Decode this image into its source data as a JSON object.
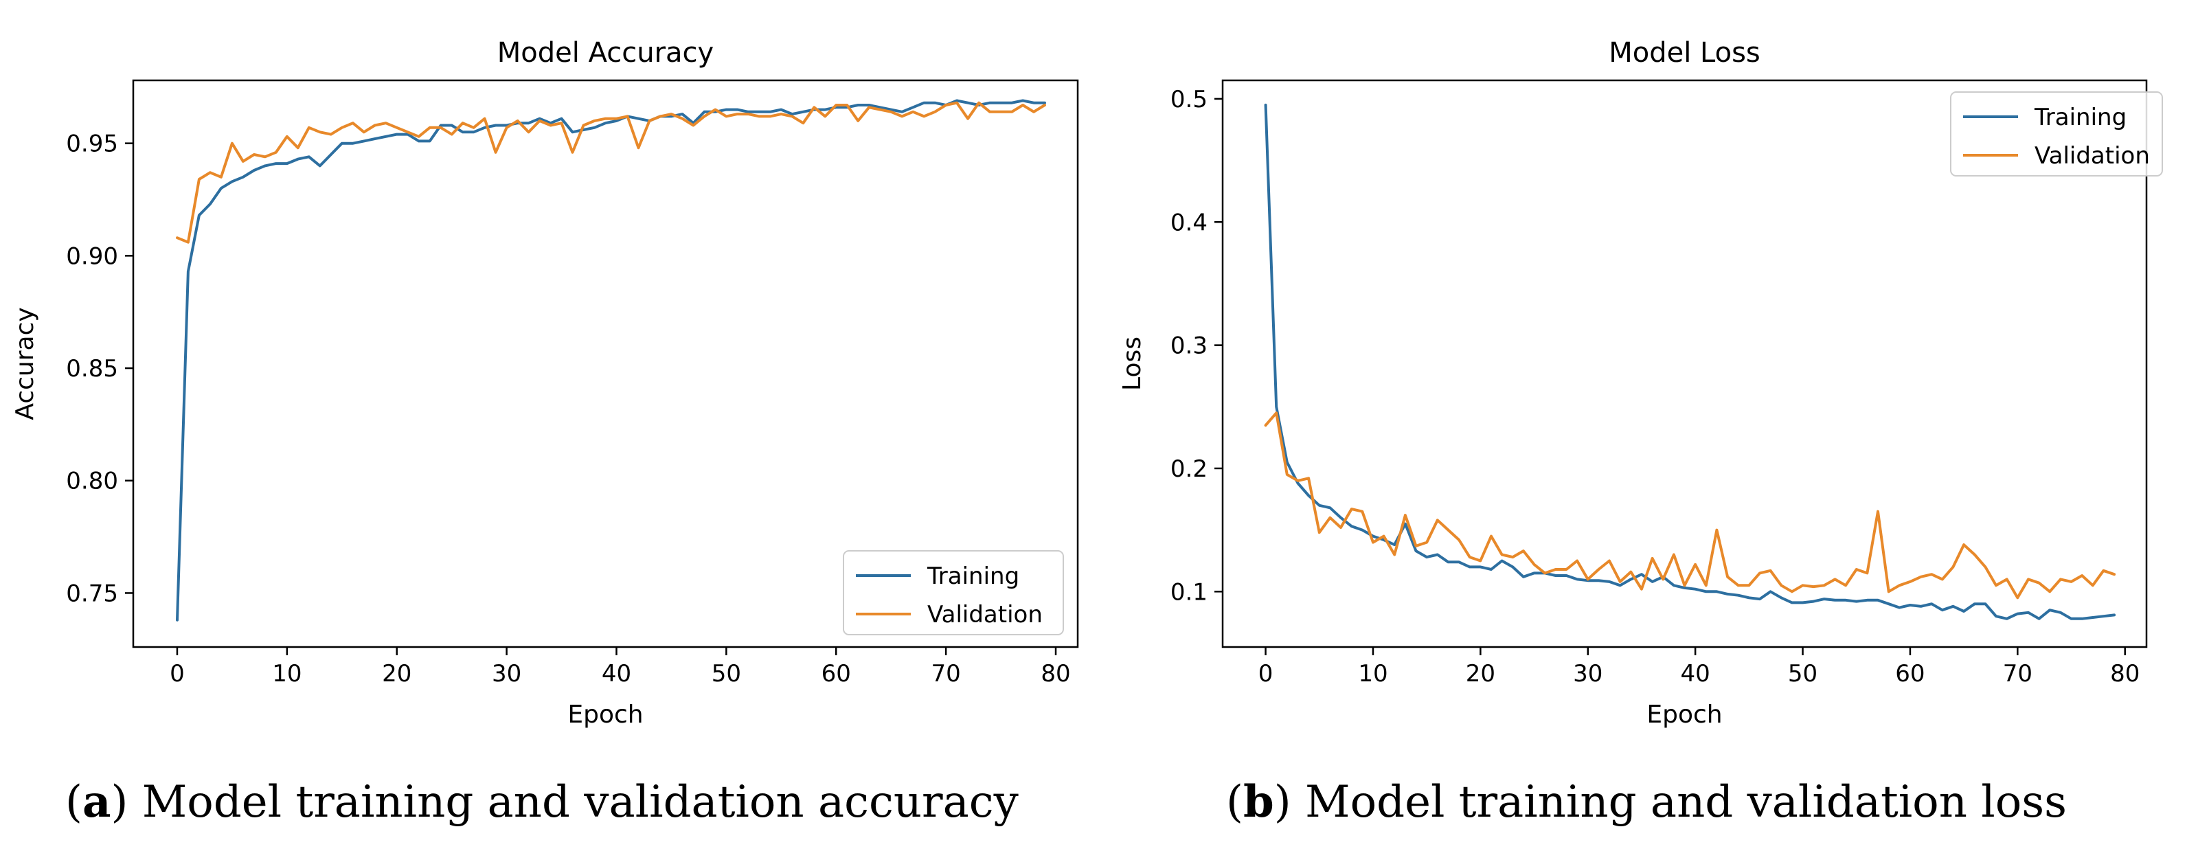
{
  "colors": {
    "training": "#2d6fa0",
    "validation": "#e8892a",
    "axis": "#000000"
  },
  "captions": [
    {
      "letter": "a",
      "text": "Model training and validation accuracy"
    },
    {
      "letter": "b",
      "text": "Model training and validation loss"
    }
  ],
  "chart_data": [
    {
      "type": "line",
      "title": "Model Accuracy",
      "xlabel": "Epoch",
      "ylabel": "Accuracy",
      "xlim": [
        -4,
        82
      ],
      "ylim": [
        0.726,
        0.978
      ],
      "xticks": [
        0,
        10,
        20,
        30,
        40,
        50,
        60,
        70,
        80
      ],
      "xtick_labels": [
        "0",
        "10",
        "20",
        "30",
        "40",
        "50",
        "60",
        "70",
        "80"
      ],
      "yticks": [
        0.75,
        0.8,
        0.85,
        0.9,
        0.95
      ],
      "ytick_labels": [
        "0.75",
        "0.80",
        "0.85",
        "0.90",
        "0.95"
      ],
      "grid": false,
      "legend_position": "lower-right",
      "series": [
        {
          "name": "Training",
          "x": [
            0,
            1,
            2,
            3,
            4,
            5,
            6,
            7,
            8,
            9,
            10,
            11,
            12,
            13,
            14,
            15,
            16,
            17,
            18,
            19,
            20,
            21,
            22,
            23,
            24,
            25,
            26,
            27,
            28,
            29,
            30,
            31,
            32,
            33,
            34,
            35,
            36,
            37,
            38,
            39,
            40,
            41,
            42,
            43,
            44,
            45,
            46,
            47,
            48,
            49,
            50,
            51,
            52,
            53,
            54,
            55,
            56,
            57,
            58,
            59,
            60,
            61,
            62,
            63,
            64,
            65,
            66,
            67,
            68,
            69,
            70,
            71,
            72,
            73,
            74,
            75,
            76,
            77,
            78,
            79
          ],
          "values": [
            0.738,
            0.893,
            0.918,
            0.923,
            0.93,
            0.933,
            0.935,
            0.938,
            0.94,
            0.941,
            0.941,
            0.943,
            0.944,
            0.94,
            0.945,
            0.95,
            0.95,
            0.951,
            0.952,
            0.953,
            0.954,
            0.954,
            0.951,
            0.951,
            0.958,
            0.958,
            0.955,
            0.955,
            0.957,
            0.958,
            0.958,
            0.959,
            0.959,
            0.961,
            0.959,
            0.961,
            0.955,
            0.956,
            0.957,
            0.959,
            0.96,
            0.962,
            0.961,
            0.96,
            0.962,
            0.962,
            0.963,
            0.959,
            0.964,
            0.964,
            0.965,
            0.965,
            0.964,
            0.964,
            0.964,
            0.965,
            0.963,
            0.964,
            0.965,
            0.965,
            0.966,
            0.966,
            0.967,
            0.967,
            0.966,
            0.965,
            0.964,
            0.966,
            0.968,
            0.968,
            0.967,
            0.969,
            0.968,
            0.967,
            0.968,
            0.968,
            0.968,
            0.969,
            0.968,
            0.968
          ]
        },
        {
          "name": "Validation",
          "x": [
            0,
            1,
            2,
            3,
            4,
            5,
            6,
            7,
            8,
            9,
            10,
            11,
            12,
            13,
            14,
            15,
            16,
            17,
            18,
            19,
            20,
            21,
            22,
            23,
            24,
            25,
            26,
            27,
            28,
            29,
            30,
            31,
            32,
            33,
            34,
            35,
            36,
            37,
            38,
            39,
            40,
            41,
            42,
            43,
            44,
            45,
            46,
            47,
            48,
            49,
            50,
            51,
            52,
            53,
            54,
            55,
            56,
            57,
            58,
            59,
            60,
            61,
            62,
            63,
            64,
            65,
            66,
            67,
            68,
            69,
            70,
            71,
            72,
            73,
            74,
            75,
            76,
            77,
            78,
            79
          ],
          "values": [
            0.908,
            0.906,
            0.934,
            0.937,
            0.935,
            0.95,
            0.942,
            0.945,
            0.944,
            0.946,
            0.953,
            0.948,
            0.957,
            0.955,
            0.954,
            0.957,
            0.959,
            0.955,
            0.958,
            0.959,
            0.957,
            0.955,
            0.953,
            0.957,
            0.957,
            0.954,
            0.959,
            0.957,
            0.961,
            0.946,
            0.957,
            0.96,
            0.955,
            0.96,
            0.958,
            0.959,
            0.946,
            0.958,
            0.96,
            0.961,
            0.961,
            0.962,
            0.948,
            0.96,
            0.962,
            0.963,
            0.961,
            0.958,
            0.962,
            0.965,
            0.962,
            0.963,
            0.963,
            0.962,
            0.962,
            0.963,
            0.962,
            0.959,
            0.966,
            0.962,
            0.967,
            0.967,
            0.96,
            0.966,
            0.965,
            0.964,
            0.962,
            0.964,
            0.962,
            0.964,
            0.967,
            0.968,
            0.961,
            0.968,
            0.964,
            0.964,
            0.964,
            0.967,
            0.964,
            0.967
          ]
        }
      ]
    },
    {
      "type": "line",
      "title": "Model Loss",
      "xlabel": "Epoch",
      "ylabel": "Loss",
      "xlim": [
        -4,
        82
      ],
      "ylim": [
        0.055,
        0.515
      ],
      "xticks": [
        0,
        10,
        20,
        30,
        40,
        50,
        60,
        70,
        80
      ],
      "xtick_labels": [
        "0",
        "10",
        "20",
        "30",
        "40",
        "50",
        "60",
        "70",
        "80"
      ],
      "yticks": [
        0.1,
        0.2,
        0.3,
        0.4,
        0.5
      ],
      "ytick_labels": [
        "0.1",
        "0.2",
        "0.3",
        "0.4",
        "0.5"
      ],
      "grid": false,
      "legend_position": "upper-right",
      "series": [
        {
          "name": "Training",
          "x": [
            0,
            1,
            2,
            3,
            4,
            5,
            6,
            7,
            8,
            9,
            10,
            11,
            12,
            13,
            14,
            15,
            16,
            17,
            18,
            19,
            20,
            21,
            22,
            23,
            24,
            25,
            26,
            27,
            28,
            29,
            30,
            31,
            32,
            33,
            34,
            35,
            36,
            37,
            38,
            39,
            40,
            41,
            42,
            43,
            44,
            45,
            46,
            47,
            48,
            49,
            50,
            51,
            52,
            53,
            54,
            55,
            56,
            57,
            58,
            59,
            60,
            61,
            62,
            63,
            64,
            65,
            66,
            67,
            68,
            69,
            70,
            71,
            72,
            73,
            74,
            75,
            76,
            77,
            78,
            79
          ],
          "values": [
            0.495,
            0.25,
            0.205,
            0.188,
            0.178,
            0.17,
            0.168,
            0.16,
            0.153,
            0.15,
            0.145,
            0.142,
            0.138,
            0.155,
            0.133,
            0.128,
            0.13,
            0.124,
            0.124,
            0.12,
            0.12,
            0.118,
            0.125,
            0.12,
            0.112,
            0.115,
            0.115,
            0.113,
            0.113,
            0.11,
            0.109,
            0.109,
            0.108,
            0.105,
            0.11,
            0.114,
            0.108,
            0.112,
            0.105,
            0.103,
            0.102,
            0.1,
            0.1,
            0.098,
            0.097,
            0.095,
            0.094,
            0.1,
            0.095,
            0.091,
            0.091,
            0.092,
            0.094,
            0.093,
            0.093,
            0.092,
            0.093,
            0.093,
            0.09,
            0.087,
            0.089,
            0.088,
            0.09,
            0.085,
            0.088,
            0.084,
            0.09,
            0.09,
            0.08,
            0.078,
            0.082,
            0.083,
            0.078,
            0.085,
            0.083,
            0.078,
            0.078,
            0.079,
            0.08,
            0.081
          ]
        },
        {
          "name": "Validation",
          "x": [
            0,
            1,
            2,
            3,
            4,
            5,
            6,
            7,
            8,
            9,
            10,
            11,
            12,
            13,
            14,
            15,
            16,
            17,
            18,
            19,
            20,
            21,
            22,
            23,
            24,
            25,
            26,
            27,
            28,
            29,
            30,
            31,
            32,
            33,
            34,
            35,
            36,
            37,
            38,
            39,
            40,
            41,
            42,
            43,
            44,
            45,
            46,
            47,
            48,
            49,
            50,
            51,
            52,
            53,
            54,
            55,
            56,
            57,
            58,
            59,
            60,
            61,
            62,
            63,
            64,
            65,
            66,
            67,
            68,
            69,
            70,
            71,
            72,
            73,
            74,
            75,
            76,
            77,
            78,
            79
          ],
          "values": [
            0.235,
            0.245,
            0.195,
            0.19,
            0.192,
            0.148,
            0.16,
            0.152,
            0.167,
            0.165,
            0.14,
            0.145,
            0.13,
            0.162,
            0.137,
            0.14,
            0.158,
            0.15,
            0.142,
            0.128,
            0.125,
            0.145,
            0.13,
            0.128,
            0.133,
            0.122,
            0.115,
            0.118,
            0.118,
            0.125,
            0.11,
            0.118,
            0.125,
            0.108,
            0.116,
            0.102,
            0.127,
            0.11,
            0.13,
            0.105,
            0.122,
            0.105,
            0.15,
            0.112,
            0.105,
            0.105,
            0.115,
            0.117,
            0.105,
            0.1,
            0.105,
            0.104,
            0.105,
            0.11,
            0.105,
            0.118,
            0.115,
            0.165,
            0.1,
            0.105,
            0.108,
            0.112,
            0.114,
            0.11,
            0.12,
            0.138,
            0.13,
            0.12,
            0.105,
            0.11,
            0.095,
            0.11,
            0.107,
            0.1,
            0.11,
            0.108,
            0.113,
            0.105,
            0.117,
            0.114
          ]
        }
      ]
    }
  ]
}
